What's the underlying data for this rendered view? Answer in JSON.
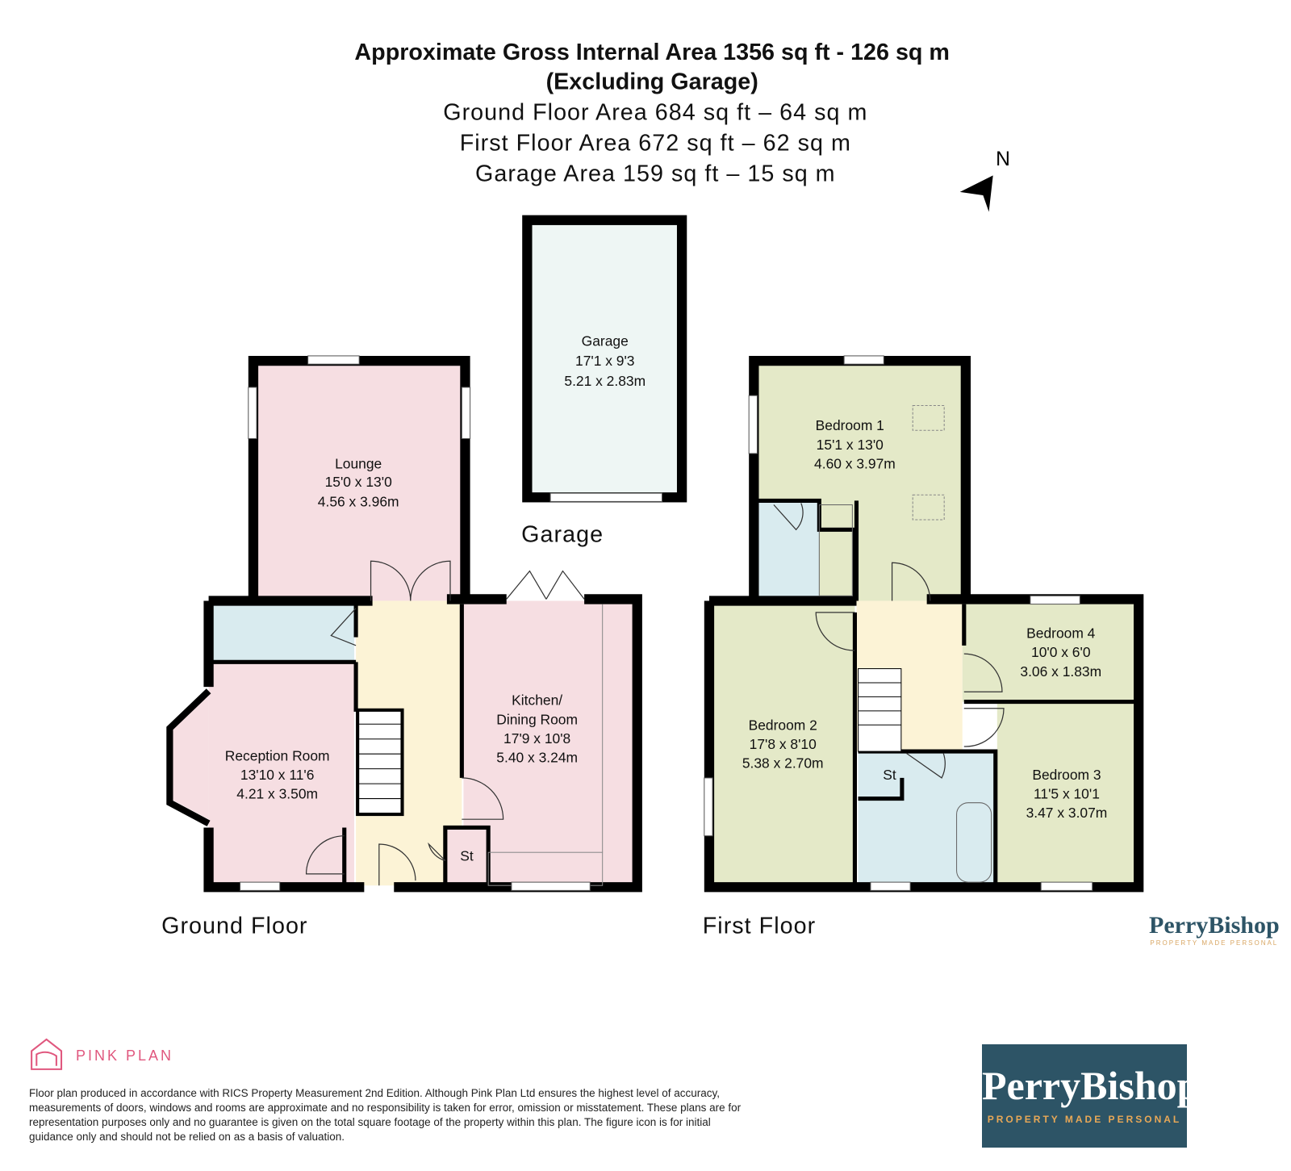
{
  "header": {
    "title_line1": "Approximate Gross Internal Area 1356 sq ft - 126 sq m",
    "title_line2": "(Excluding Garage)",
    "ground_area": "Ground Floor Area 684 sq ft – 64 sq m",
    "first_area": "First Floor Area 672 sq ft – 62 sq m",
    "garage_area": "Garage Area 159 sq ft – 15 sq m"
  },
  "compass": {
    "label": "N",
    "icon": "north-arrow-icon"
  },
  "garage": {
    "name": "Garage",
    "imperial": "17'1 x 9'3",
    "metric": "5.21 x 2.83m",
    "section_label": "Garage"
  },
  "ground_floor": {
    "label": "Ground Floor",
    "rooms": [
      {
        "name": "Lounge",
        "imperial": "15'0 x 13'0",
        "metric": "4.56 x 3.96m"
      },
      {
        "name": "Kitchen/",
        "name2": "Dining Room",
        "imperial": "17'9 x 10'8",
        "metric": "5.40 x 3.24m"
      },
      {
        "name": "Reception Room",
        "imperial": "13'10 x 11'6",
        "metric": "4.21 x 3.50m"
      },
      {
        "name": "St"
      }
    ]
  },
  "first_floor": {
    "label": "First Floor",
    "rooms": [
      {
        "name": "Bedroom 1",
        "imperial": "15'1 x 13'0",
        "metric": "4.60 x 3.97m"
      },
      {
        "name": "Bedroom 2",
        "imperial": "17'8 x 8'10",
        "metric": "5.38 x 2.70m"
      },
      {
        "name": "Bedroom 3",
        "imperial": "11'5 x 10'1",
        "metric": "3.47 x 3.07m"
      },
      {
        "name": "Bedroom 4",
        "imperial": "10'0 x 6'0",
        "metric": "3.06 x 1.83m"
      },
      {
        "name": "St"
      }
    ]
  },
  "branding": {
    "pink_plan": "PINK PLAN",
    "agent_name": "PerryBishop",
    "agent_tagline": "PROPERTY MADE PERSONAL",
    "pink_color": "#e0577e",
    "agent_color": "#2d5466",
    "tagline_color": "#e8a857"
  },
  "disclaimer": "Floor plan produced in accordance with RICS Property Measurement 2nd Edition. Although Pink Plan Ltd ensures the highest level of accuracy, measurements of doors, windows and rooms are approximate and no responsibility is taken for error, omission or misstatement. These plans are for representation purposes only and no guarantee is given on the total square footage of the property within this plan. The figure icon is for initial guidance only and should not be relied on as a basis of valuation.",
  "colors": {
    "living": "#f6dee2",
    "hall": "#fcf3d6",
    "wet": "#d9ebef",
    "bedroom": "#e4e9c8",
    "garage": "#eef6f4"
  }
}
